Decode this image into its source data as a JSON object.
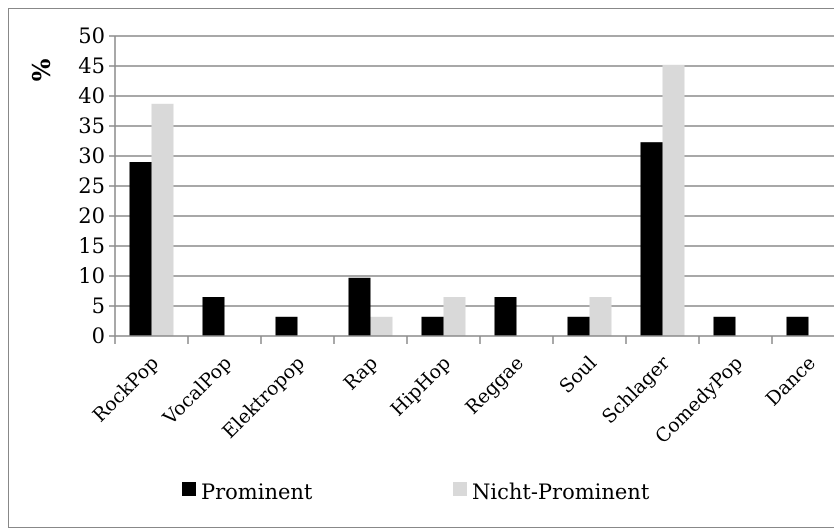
{
  "chart_data": {
    "type": "bar",
    "title": "",
    "xlabel": "",
    "ylabel": "%",
    "ylim": [
      0,
      50
    ],
    "yticks": [
      0,
      5,
      10,
      15,
      20,
      25,
      30,
      35,
      40,
      45,
      50
    ],
    "grid": true,
    "legend_position": "bottom",
    "categories": [
      "RockPop",
      "VocalPop",
      "Elektropop",
      "Rap",
      "HipHop",
      "Reggae",
      "Soul",
      "Schlager",
      "ComedyPop",
      "Dance"
    ],
    "series": [
      {
        "name": "Prominent",
        "color": "#000000",
        "values": [
          29.0,
          6.5,
          3.2,
          9.7,
          3.2,
          6.5,
          3.2,
          32.3,
          3.2,
          3.2
        ]
      },
      {
        "name": "Nicht-Prominent",
        "color": "#d9d9d9",
        "values": [
          38.7,
          0,
          0,
          3.2,
          6.5,
          0,
          6.5,
          45.2,
          0,
          0
        ]
      }
    ]
  }
}
